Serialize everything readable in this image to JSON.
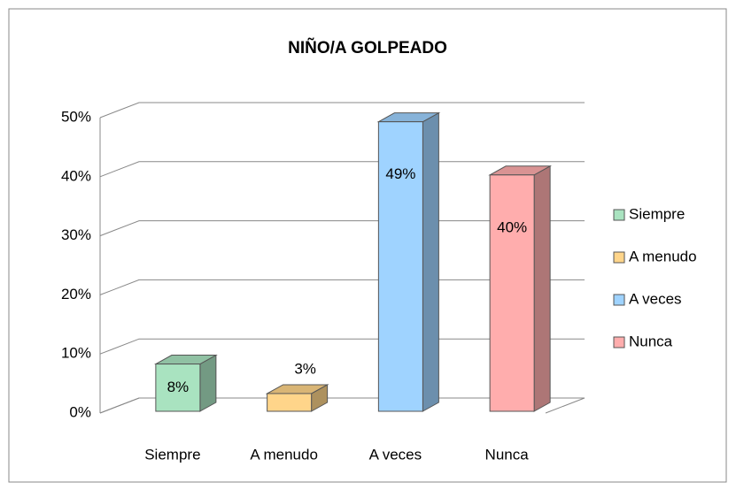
{
  "chart_data": {
    "type": "bar3d",
    "title": "NIÑO/A GOLPEADO",
    "categories": [
      "Siempre",
      "A menudo",
      "A veces",
      "Nunca"
    ],
    "values": [
      8,
      3,
      49,
      40
    ],
    "value_labels": [
      "8%",
      "3%",
      "49%",
      "40%"
    ],
    "colors": [
      "#a9e3c0",
      "#ffd58a",
      "#9fd3ff",
      "#ffadad"
    ],
    "ylim": [
      0,
      50
    ],
    "yticks": [
      {
        "value": 0,
        "label": "0%"
      },
      {
        "value": 10,
        "label": "10%"
      },
      {
        "value": 20,
        "label": "20%"
      },
      {
        "value": 30,
        "label": "30%"
      },
      {
        "value": 40,
        "label": "40%"
      },
      {
        "value": 50,
        "label": "50%"
      }
    ],
    "grid": true,
    "legend": "right"
  }
}
